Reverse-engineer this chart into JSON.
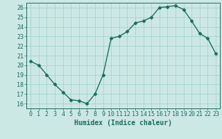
{
  "x": [
    0,
    1,
    2,
    3,
    4,
    5,
    6,
    7,
    8,
    9,
    10,
    11,
    12,
    13,
    14,
    15,
    16,
    17,
    18,
    19,
    20,
    21,
    22,
    23
  ],
  "y": [
    20.4,
    20.0,
    19.0,
    18.0,
    17.2,
    16.4,
    16.3,
    16.0,
    17.0,
    19.0,
    22.8,
    23.0,
    23.5,
    24.4,
    24.6,
    25.0,
    26.0,
    26.1,
    26.2,
    25.8,
    24.6,
    23.3,
    22.8,
    21.2
  ],
  "line_color": "#1a6b5e",
  "bg_color": "#cce8e5",
  "grid_color": "#9fcfca",
  "xlabel": "Humidex (Indice chaleur)",
  "ylim": [
    15.5,
    26.5
  ],
  "xlim": [
    -0.5,
    23.5
  ],
  "yticks": [
    16,
    17,
    18,
    19,
    20,
    21,
    22,
    23,
    24,
    25,
    26
  ],
  "xticks": [
    0,
    1,
    2,
    3,
    4,
    5,
    6,
    7,
    8,
    9,
    10,
    11,
    12,
    13,
    14,
    15,
    16,
    17,
    18,
    19,
    20,
    21,
    22,
    23
  ],
  "marker": "D",
  "marker_size": 2.5,
  "line_width": 1.0,
  "xlabel_fontsize": 7,
  "tick_fontsize": 6
}
